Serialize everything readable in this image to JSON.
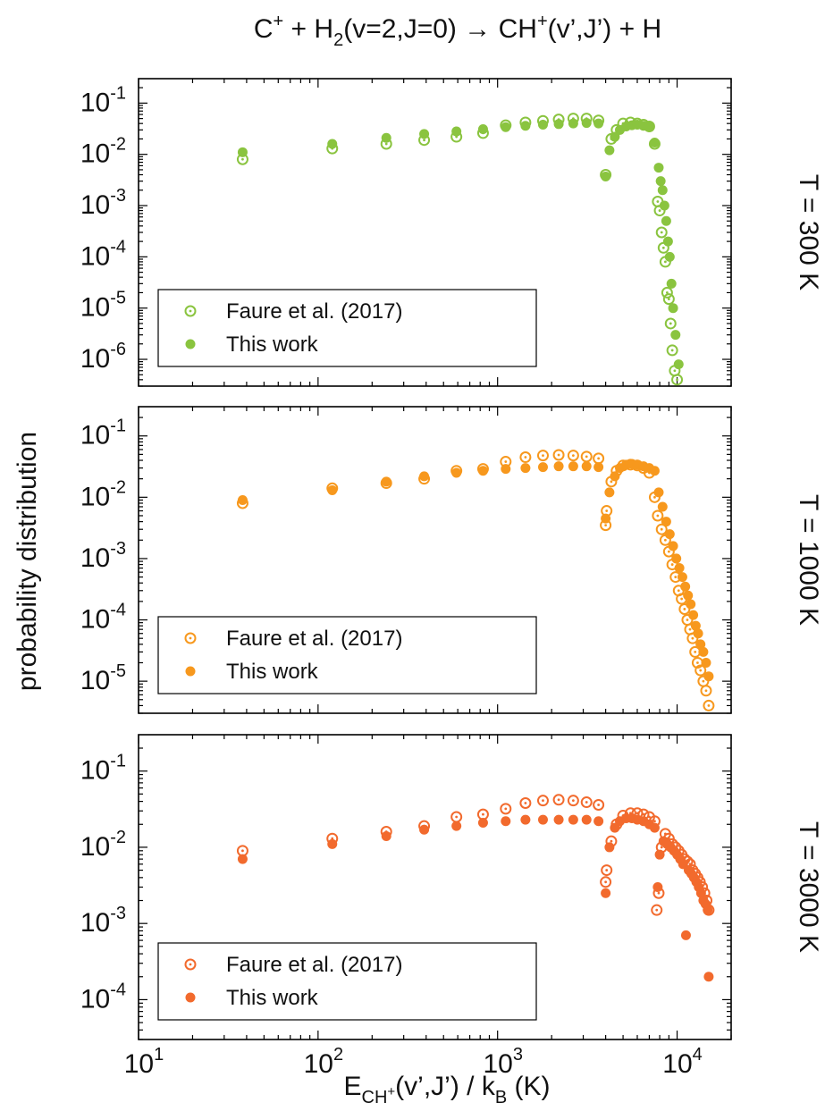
{
  "figure": {
    "title": {
      "parts": [
        {
          "t": "C",
          "s": "n"
        },
        {
          "t": "+",
          "s": "sup"
        },
        {
          "t": " + H",
          "s": "n"
        },
        {
          "t": "2",
          "s": "sub"
        },
        {
          "t": "(v=2,J=0) → CH",
          "s": "n"
        },
        {
          "t": "+",
          "s": "sup"
        },
        {
          "t": "(v’,J’) + H",
          "s": "n"
        }
      ]
    },
    "ylabel": "probability distribution",
    "xlabel": {
      "parts": [
        {
          "t": "E",
          "s": "n"
        },
        {
          "t": "CH",
          "s": "sub"
        },
        {
          "t": "+",
          "s": "subsup"
        },
        {
          "t": "(v’,J’) / k",
          "s": "n"
        },
        {
          "t": "B",
          "s": "sub"
        },
        {
          "t": " (K)",
          "s": "n"
        }
      ]
    },
    "xticks": [
      {
        "base": "10",
        "exp": "1",
        "value": 10
      },
      {
        "base": "10",
        "exp": "2",
        "value": 100
      },
      {
        "base": "10",
        "exp": "3",
        "value": 1000
      },
      {
        "base": "10",
        "exp": "4",
        "value": 10000
      }
    ]
  },
  "chart_data": [
    {
      "type": "scatter",
      "title": "T = 300 K",
      "x_scale": "log",
      "y_scale": "log",
      "xlim": [
        10,
        20000
      ],
      "ylim": [
        3e-07,
        0.3
      ],
      "color": "#8ac43f",
      "yticks": [
        {
          "base": "10",
          "exp": "-6",
          "value": 1e-06
        },
        {
          "base": "10",
          "exp": "-5",
          "value": 1e-05
        },
        {
          "base": "10",
          "exp": "-4",
          "value": 0.0001
        },
        {
          "base": "10",
          "exp": "-3",
          "value": 0.001
        },
        {
          "base": "10",
          "exp": "-2",
          "value": 0.01
        },
        {
          "base": "10",
          "exp": "-1",
          "value": 0.1
        }
      ],
      "legend": {
        "position": "bottom-left",
        "entries": [
          "Faure et al. (2017)",
          "This work"
        ]
      },
      "series": [
        {
          "name": "Faure et al. (2017)",
          "marker": "open-circle-dot",
          "x": [
            38,
            120,
            240,
            390,
            590,
            830,
            1110,
            1430,
            1790,
            2190,
            2640,
            3130,
            3650,
            4000,
            4300,
            4600,
            5000,
            5500,
            6000,
            6500,
            7000,
            7500,
            7800,
            8000,
            8200,
            8400,
            8600,
            8800,
            9000,
            9200,
            9400,
            9700,
            10000
          ],
          "y": [
            0.008,
            0.013,
            0.016,
            0.019,
            0.022,
            0.026,
            0.037,
            0.042,
            0.045,
            0.048,
            0.05,
            0.05,
            0.046,
            0.004,
            0.02,
            0.03,
            0.04,
            0.042,
            0.04,
            0.038,
            0.035,
            0.016,
            0.0012,
            0.0008,
            0.0003,
            0.00015,
            8e-05,
            2e-05,
            1.5e-05,
            5e-06,
            1.5e-06,
            6e-07,
            4e-07
          ]
        },
        {
          "name": "This work",
          "marker": "filled-circle",
          "x": [
            38,
            120,
            240,
            390,
            590,
            830,
            1110,
            1430,
            1790,
            2190,
            2640,
            3130,
            3650,
            4000,
            4200,
            4500,
            4800,
            5200,
            5600,
            6000,
            6500,
            7000,
            7500,
            7900,
            8100,
            8300,
            8500,
            8700,
            8900,
            9100,
            9300,
            9500,
            9800,
            10200
          ],
          "y": [
            0.011,
            0.016,
            0.021,
            0.025,
            0.028,
            0.031,
            0.034,
            0.036,
            0.038,
            0.039,
            0.04,
            0.041,
            0.04,
            0.0037,
            0.012,
            0.022,
            0.03,
            0.035,
            0.037,
            0.038,
            0.036,
            0.034,
            0.017,
            0.0055,
            0.003,
            0.002,
            0.001,
            0.0005,
            0.0002,
            0.0001,
            3e-05,
            1e-05,
            3e-06,
            8e-07
          ]
        }
      ]
    },
    {
      "type": "scatter",
      "title": "T = 1000 K",
      "x_scale": "log",
      "y_scale": "log",
      "xlim": [
        10,
        20000
      ],
      "ylim": [
        3e-06,
        0.3
      ],
      "color": "#f7981d",
      "yticks": [
        {
          "base": "10",
          "exp": "-5",
          "value": 1e-05
        },
        {
          "base": "10",
          "exp": "-4",
          "value": 0.0001
        },
        {
          "base": "10",
          "exp": "-3",
          "value": 0.001
        },
        {
          "base": "10",
          "exp": "-2",
          "value": 0.01
        },
        {
          "base": "10",
          "exp": "-1",
          "value": 0.1
        }
      ],
      "legend": {
        "position": "bottom-left",
        "entries": [
          "Faure et al. (2017)",
          "This work"
        ]
      },
      "series": [
        {
          "name": "Faure et al. (2017)",
          "marker": "open-circle-dot",
          "x": [
            38,
            120,
            240,
            390,
            590,
            830,
            1110,
            1430,
            1790,
            2190,
            2640,
            3130,
            3650,
            4000,
            4050,
            4300,
            4600,
            5000,
            5500,
            6000,
            6500,
            7000,
            7500,
            7800,
            8200,
            8600,
            9000,
            9400,
            9800,
            10200,
            10600,
            11000,
            11400,
            11800,
            12200,
            12600,
            13000,
            13500,
            14000,
            14500,
            15000
          ],
          "y": [
            0.008,
            0.014,
            0.017,
            0.02,
            0.027,
            0.029,
            0.038,
            0.045,
            0.048,
            0.049,
            0.048,
            0.046,
            0.043,
            0.0035,
            0.006,
            0.018,
            0.027,
            0.033,
            0.034,
            0.033,
            0.03,
            0.025,
            0.01,
            0.005,
            0.003,
            0.002,
            0.0013,
            0.0008,
            0.0005,
            0.0003,
            0.00022,
            0.00015,
            0.0001,
            7e-05,
            5e-05,
            3e-05,
            2e-05,
            1.5e-05,
            1e-05,
            7e-06,
            4e-06
          ]
        },
        {
          "name": "This work",
          "marker": "filled-circle",
          "x": [
            38,
            120,
            240,
            390,
            590,
            830,
            1110,
            1430,
            1790,
            2190,
            2640,
            3130,
            3650,
            4000,
            4200,
            4500,
            4800,
            5200,
            5600,
            6000,
            6500,
            7000,
            7500,
            7900,
            8300,
            8700,
            9100,
            9500,
            9900,
            10300,
            10700,
            11100,
            11500,
            11900,
            12300,
            12700,
            13100,
            13500,
            14000,
            14500,
            15000
          ],
          "y": [
            0.009,
            0.013,
            0.018,
            0.022,
            0.025,
            0.027,
            0.029,
            0.03,
            0.031,
            0.032,
            0.032,
            0.032,
            0.031,
            0.0045,
            0.012,
            0.022,
            0.03,
            0.034,
            0.035,
            0.034,
            0.032,
            0.03,
            0.027,
            0.012,
            0.007,
            0.004,
            0.0025,
            0.0016,
            0.001,
            0.0007,
            0.0005,
            0.00035,
            0.00025,
            0.00018,
            0.00012,
            8e-05,
            6e-05,
            4e-05,
            3e-05,
            2e-05,
            1.2e-05
          ]
        }
      ]
    },
    {
      "type": "scatter",
      "title": "T = 3000 K",
      "x_scale": "log",
      "y_scale": "log",
      "xlim": [
        10,
        20000
      ],
      "ylim": [
        3e-05,
        0.3
      ],
      "color": "#f26a2d",
      "yticks": [
        {
          "base": "10",
          "exp": "-4",
          "value": 0.0001
        },
        {
          "base": "10",
          "exp": "-3",
          "value": 0.001
        },
        {
          "base": "10",
          "exp": "-2",
          "value": 0.01
        },
        {
          "base": "10",
          "exp": "-1",
          "value": 0.1
        }
      ],
      "legend": {
        "position": "bottom-left",
        "entries": [
          "Faure et al. (2017)",
          "This work"
        ]
      },
      "series": [
        {
          "name": "Faure et al. (2017)",
          "marker": "open-circle-dot",
          "x": [
            38,
            120,
            240,
            390,
            590,
            830,
            1110,
            1430,
            1790,
            2190,
            2640,
            3130,
            3650,
            4000,
            4050,
            4300,
            4600,
            5000,
            5500,
            6000,
            6500,
            7000,
            7500,
            7700,
            7900,
            8200,
            8600,
            9000,
            9400,
            9800,
            10200,
            10600,
            11000,
            11400,
            11800,
            12200,
            12600,
            13000,
            13400,
            13800,
            14200,
            14600,
            15000
          ],
          "y": [
            0.009,
            0.013,
            0.016,
            0.019,
            0.025,
            0.027,
            0.032,
            0.038,
            0.041,
            0.042,
            0.041,
            0.039,
            0.036,
            0.0035,
            0.005,
            0.012,
            0.02,
            0.026,
            0.028,
            0.028,
            0.027,
            0.025,
            0.022,
            0.0015,
            0.0025,
            0.01,
            0.015,
            0.013,
            0.011,
            0.01,
            0.009,
            0.008,
            0.007,
            0.0065,
            0.006,
            0.005,
            0.0045,
            0.004,
            0.0035,
            0.003,
            0.0025,
            0.002,
            0.0015
          ]
        },
        {
          "name": "This work",
          "marker": "filled-circle",
          "x": [
            38,
            120,
            240,
            390,
            590,
            830,
            1110,
            1430,
            1790,
            2190,
            2640,
            3130,
            3650,
            4000,
            4200,
            4500,
            4800,
            5200,
            5600,
            6000,
            6500,
            7000,
            7500,
            7800,
            8000,
            8400,
            8800,
            9200,
            9600,
            10000,
            10400,
            10800,
            11200,
            11600,
            12000,
            12400,
            12800,
            13200,
            13600,
            14000,
            14400,
            14800,
            15000
          ],
          "y": [
            0.007,
            0.011,
            0.014,
            0.017,
            0.019,
            0.021,
            0.022,
            0.023,
            0.023,
            0.023,
            0.023,
            0.023,
            0.022,
            0.0025,
            0.01,
            0.018,
            0.022,
            0.024,
            0.024,
            0.023,
            0.022,
            0.02,
            0.018,
            0.003,
            0.008,
            0.012,
            0.011,
            0.01,
            0.009,
            0.008,
            0.007,
            0.006,
            0.0007,
            0.005,
            0.0045,
            0.004,
            0.0035,
            0.003,
            0.0025,
            0.002,
            0.0018,
            0.0015,
            0.0002
          ]
        }
      ]
    }
  ]
}
